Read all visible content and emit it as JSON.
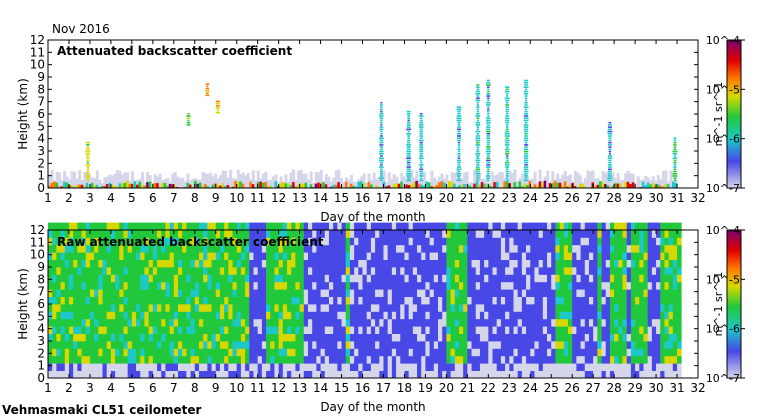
{
  "header": {
    "period": "Nov 2016"
  },
  "footer": {
    "instrument": "Vehmasmaki CL51 ceilometer"
  },
  "colorbar": {
    "ticks": [
      "10^-4",
      "10^-5",
      "10^-6",
      "10^-7"
    ],
    "unit": "m^-1 sr^-1",
    "scale": "log",
    "colors": [
      "#d6d6ea",
      "#4848e6",
      "#1cc8c8",
      "#22c83c",
      "#d8d800",
      "#ff7700",
      "#e00000",
      "#7a006e"
    ]
  },
  "chart_data": [
    {
      "type": "heatmap",
      "title": "Attenuated backscatter coefficient",
      "xlabel": "Day of the month",
      "ylabel": "Height (km)",
      "xlim": [
        1,
        32
      ],
      "ylim": [
        0,
        12
      ],
      "xticks": [
        1,
        2,
        3,
        4,
        5,
        6,
        7,
        8,
        9,
        10,
        11,
        12,
        13,
        14,
        15,
        16,
        17,
        18,
        19,
        20,
        21,
        22,
        23,
        24,
        25,
        26,
        27,
        28,
        29,
        30,
        31,
        32
      ],
      "yticks": [
        0,
        1,
        2,
        3,
        4,
        5,
        6,
        7,
        8,
        9,
        10,
        11,
        12
      ],
      "color_scale": "log",
      "clim": [
        1e-07,
        0.0001
      ],
      "cloud_features": [
        {
          "day": 8.6,
          "bottom_km": 7.4,
          "top_km": 8.3,
          "level": 0.65
        },
        {
          "day": 9.1,
          "bottom_km": 6.0,
          "top_km": 6.9,
          "level": 0.6
        },
        {
          "day": 7.7,
          "bottom_km": 5.0,
          "top_km": 6.0,
          "level": 0.55
        },
        {
          "day": 2.9,
          "bottom_km": 0.5,
          "top_km": 3.6,
          "level": 0.55
        },
        {
          "day": 16.9,
          "bottom_km": 0.5,
          "top_km": 6.8,
          "level": 0.3
        },
        {
          "day": 18.2,
          "bottom_km": 0.5,
          "top_km": 6.2,
          "level": 0.3
        },
        {
          "day": 18.8,
          "bottom_km": 0.5,
          "top_km": 6.0,
          "level": 0.3
        },
        {
          "day": 20.6,
          "bottom_km": 0.5,
          "top_km": 6.5,
          "level": 0.3
        },
        {
          "day": 21.5,
          "bottom_km": 0.5,
          "top_km": 8.3,
          "level": 0.32
        },
        {
          "day": 22.0,
          "bottom_km": 0.5,
          "top_km": 8.7,
          "level": 0.32
        },
        {
          "day": 22.9,
          "bottom_km": 0.5,
          "top_km": 8.2,
          "level": 0.32
        },
        {
          "day": 23.8,
          "bottom_km": 0.5,
          "top_km": 8.6,
          "level": 0.32
        },
        {
          "day": 27.8,
          "bottom_km": 0.5,
          "top_km": 5.2,
          "level": 0.28
        },
        {
          "day": 30.9,
          "bottom_km": 0.5,
          "top_km": 4.0,
          "level": 0.4
        }
      ]
    },
    {
      "type": "heatmap",
      "title": "Raw attenuated backscatter coefficient",
      "xlabel": "Day of the month",
      "ylabel": "Height (km)",
      "xlim": [
        1,
        32
      ],
      "ylim": [
        0,
        12
      ],
      "xticks": [
        1,
        2,
        3,
        4,
        5,
        6,
        7,
        8,
        9,
        10,
        11,
        12,
        13,
        14,
        15,
        16,
        17,
        18,
        19,
        20,
        21,
        22,
        23,
        24,
        25,
        26,
        27,
        28,
        29,
        30,
        31,
        32
      ],
      "yticks": [
        0,
        1,
        2,
        3,
        4,
        5,
        6,
        7,
        8,
        9,
        10,
        11,
        12
      ],
      "color_scale": "log",
      "clim": [
        1e-07,
        0.0001
      ],
      "noisy_periods": [
        [
          1,
          10.5
        ],
        [
          11.2,
          13
        ],
        [
          15.1,
          15.3
        ],
        [
          19.8,
          20.8
        ],
        [
          25,
          25.8
        ],
        [
          27.1,
          27.3
        ],
        [
          27.6,
          28.4
        ],
        [
          28.7,
          29.4
        ],
        [
          30.1,
          31
        ]
      ]
    }
  ]
}
